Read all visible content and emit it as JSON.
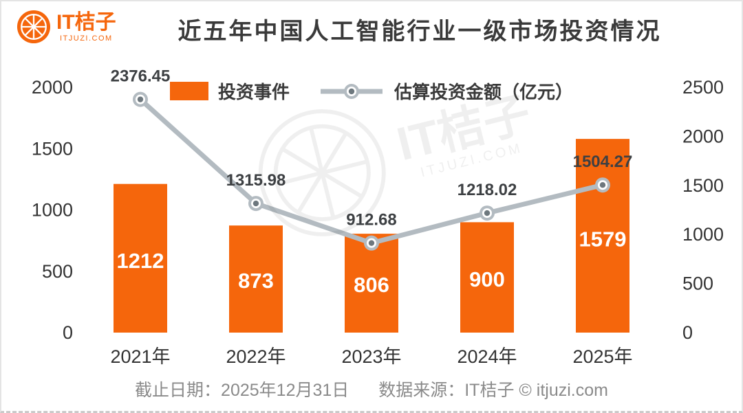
{
  "brand": {
    "logo_text": "IT桔子",
    "logo_sub": "ITJUZI.COM",
    "orange": "#F5660C"
  },
  "header": {
    "title": "近五年中国人工智能行业一级市场投资情况"
  },
  "watermark": {
    "text": "IT桔子",
    "sub": "ITJUZI.COM"
  },
  "footer": {
    "date_label": "截止日期：2025年12月31日",
    "source_label": "数据来源：IT桔子 © itjuzi.com"
  },
  "chart_data": {
    "type": "bar",
    "subtype": "bar+line dual-axis combo",
    "title": "近五年中国人工智能行业一级市场投资情况",
    "categories": [
      "2021年",
      "2022年",
      "2023年",
      "2024年",
      "2025年"
    ],
    "series": [
      {
        "name": "投资事件",
        "type": "bar",
        "axis": "left",
        "color": "#F5660C",
        "values": [
          1212,
          873,
          806,
          900,
          1579
        ]
      },
      {
        "name": "估算投资金额（亿元）",
        "type": "line",
        "axis": "right",
        "color": "#B3BBC1",
        "marker_center": "#6E787E",
        "values": [
          2376.45,
          1315.98,
          912.68,
          1218.02,
          1504.27
        ]
      }
    ],
    "left_axis": {
      "max": 2000,
      "ticks": [
        0,
        500,
        1000,
        1500,
        2000
      ]
    },
    "right_axis": {
      "max": 2500,
      "ticks": [
        0,
        500,
        1000,
        1500,
        2000,
        2500
      ]
    },
    "legend_position": "top-center",
    "grid": false,
    "value_labels": true
  }
}
